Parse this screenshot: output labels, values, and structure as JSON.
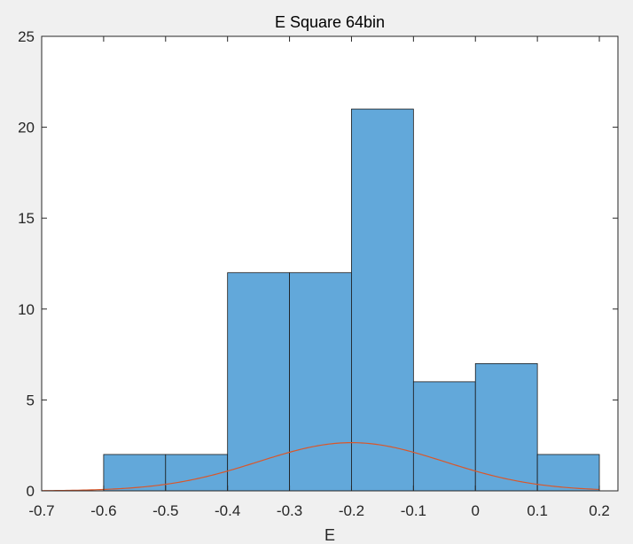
{
  "chart_data": {
    "type": "bar",
    "title": "E Square 64bin",
    "xlabel": "E",
    "ylabel": "",
    "xlim": [
      -0.7,
      0.23
    ],
    "ylim": [
      0,
      25
    ],
    "xticks": [
      -0.7,
      -0.6,
      -0.5,
      -0.4,
      -0.3,
      -0.2,
      -0.1,
      0,
      0.1,
      0.2
    ],
    "xtick_labels": [
      "-0.7",
      "-0.6",
      "-0.5",
      "-0.4",
      "-0.3",
      "-0.2",
      "-0.1",
      "0",
      "0.1",
      "0.2"
    ],
    "yticks": [
      0,
      5,
      10,
      15,
      20,
      25
    ],
    "ytick_labels": [
      "0",
      "5",
      "10",
      "15",
      "20",
      "25"
    ],
    "grid": false,
    "legend": "none",
    "bins": [
      {
        "x0": -0.6,
        "x1": -0.5,
        "count": 2
      },
      {
        "x0": -0.5,
        "x1": -0.4,
        "count": 2
      },
      {
        "x0": -0.4,
        "x1": -0.3,
        "count": 12
      },
      {
        "x0": -0.3,
        "x1": -0.2,
        "count": 12
      },
      {
        "x0": -0.2,
        "x1": -0.1,
        "count": 21
      },
      {
        "x0": -0.1,
        "x1": 0.0,
        "count": 6
      },
      {
        "x0": 0.0,
        "x1": 0.1,
        "count": 7
      },
      {
        "x0": 0.1,
        "x1": 0.2,
        "count": 2
      }
    ],
    "fit_curve": {
      "type": "normal",
      "mean": -0.2,
      "sigma": 0.15,
      "peak": 2.65,
      "x_range": [
        -0.7,
        0.2
      ]
    },
    "colors": {
      "bar_fill": "#62a8da",
      "bar_edge": "#1a1a1a",
      "curve": "#d9572a",
      "axes_bg": "#ffffff",
      "figure_bg": "#f0f0f0",
      "axis_line": "#262626"
    }
  }
}
